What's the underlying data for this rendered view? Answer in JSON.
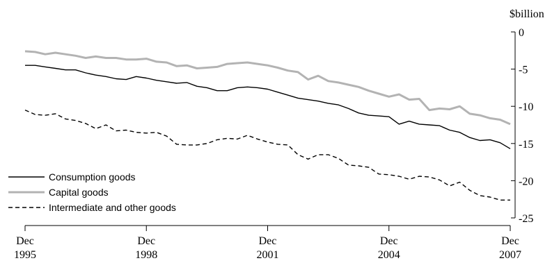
{
  "chart_data": {
    "type": "line",
    "unit_label": "$billion",
    "y_axis": {
      "position": "right",
      "ylim": [
        -25,
        0
      ],
      "ticks": [
        0,
        -5,
        -10,
        -15,
        -20,
        -25
      ],
      "tick_labels": [
        "0",
        "-5",
        "-10",
        "-15",
        "-20",
        "-25"
      ]
    },
    "x_axis": {
      "xlim": [
        1995.917,
        2007.917
      ],
      "ticks": [
        {
          "value": 1995.917,
          "line1": "Dec",
          "line2": "1995"
        },
        {
          "value": 1998.917,
          "line1": "Dec",
          "line2": "1998"
        },
        {
          "value": 2001.917,
          "line1": "Dec",
          "line2": "2001"
        },
        {
          "value": 2004.917,
          "line1": "Dec",
          "line2": "2004"
        },
        {
          "value": 2007.917,
          "line1": "Dec",
          "line2": "2007"
        }
      ]
    },
    "grid": false,
    "legend_position": "bottom-left",
    "series": [
      {
        "name": "Consumption goods",
        "color": "#000000",
        "dash": "solid",
        "x": [
          1995.917,
          1996.167,
          1996.417,
          1996.667,
          1996.917,
          1997.167,
          1997.417,
          1997.667,
          1997.917,
          1998.167,
          1998.417,
          1998.667,
          1998.917,
          1999.167,
          1999.417,
          1999.667,
          1999.917,
          2000.167,
          2000.417,
          2000.667,
          2000.917,
          2001.167,
          2001.417,
          2001.667,
          2001.917,
          2002.167,
          2002.417,
          2002.667,
          2002.917,
          2003.167,
          2003.417,
          2003.667,
          2003.917,
          2004.167,
          2004.417,
          2004.667,
          2004.917,
          2005.167,
          2005.417,
          2005.667,
          2005.917,
          2006.167,
          2006.417,
          2006.667,
          2006.917,
          2007.167,
          2007.417,
          2007.667,
          2007.917
        ],
        "y": [
          -4.5,
          -4.5,
          -4.7,
          -4.9,
          -5.1,
          -5.1,
          -5.5,
          -5.8,
          -6.0,
          -6.3,
          -6.4,
          -6.0,
          -6.2,
          -6.5,
          -6.7,
          -6.9,
          -6.8,
          -7.3,
          -7.5,
          -7.9,
          -7.9,
          -7.5,
          -7.4,
          -7.5,
          -7.7,
          -8.1,
          -8.5,
          -8.9,
          -9.1,
          -9.3,
          -9.6,
          -9.8,
          -10.3,
          -10.9,
          -11.2,
          -11.3,
          -11.4,
          -12.4,
          -12.0,
          -12.4,
          -12.5,
          -12.6,
          -13.2,
          -13.5,
          -14.2,
          -14.6,
          -14.5,
          -14.9,
          -15.7
        ]
      },
      {
        "name": "Capital goods",
        "color": "#b3b3b3",
        "dash": "solid",
        "x": [
          1995.917,
          1996.167,
          1996.417,
          1996.667,
          1996.917,
          1997.167,
          1997.417,
          1997.667,
          1997.917,
          1998.167,
          1998.417,
          1998.667,
          1998.917,
          1999.167,
          1999.417,
          1999.667,
          1999.917,
          2000.167,
          2000.417,
          2000.667,
          2000.917,
          2001.167,
          2001.417,
          2001.667,
          2001.917,
          2002.167,
          2002.417,
          2002.667,
          2002.917,
          2003.167,
          2003.417,
          2003.667,
          2003.917,
          2004.167,
          2004.417,
          2004.667,
          2004.917,
          2005.167,
          2005.417,
          2005.667,
          2005.917,
          2006.167,
          2006.417,
          2006.667,
          2006.917,
          2007.167,
          2007.417,
          2007.667,
          2007.917
        ],
        "y": [
          -2.6,
          -2.7,
          -3.0,
          -2.8,
          -3.0,
          -3.2,
          -3.5,
          -3.3,
          -3.5,
          -3.5,
          -3.7,
          -3.7,
          -3.6,
          -4.0,
          -4.1,
          -4.6,
          -4.5,
          -4.9,
          -4.8,
          -4.7,
          -4.3,
          -4.2,
          -4.1,
          -4.3,
          -4.5,
          -4.8,
          -5.2,
          -5.4,
          -6.4,
          -5.9,
          -6.6,
          -6.8,
          -7.1,
          -7.4,
          -7.9,
          -8.3,
          -8.7,
          -8.4,
          -9.1,
          -9.0,
          -10.5,
          -10.3,
          -10.4,
          -10.0,
          -11.0,
          -11.2,
          -11.6,
          -11.8,
          -12.4
        ]
      },
      {
        "name": "Intermediate and other goods",
        "color": "#000000",
        "dash": "dashed",
        "x": [
          1995.917,
          1996.167,
          1996.417,
          1996.667,
          1996.917,
          1997.167,
          1997.417,
          1997.667,
          1997.917,
          1998.167,
          1998.417,
          1998.667,
          1998.917,
          1999.167,
          1999.417,
          1999.667,
          1999.917,
          2000.167,
          2000.417,
          2000.667,
          2000.917,
          2001.167,
          2001.417,
          2001.667,
          2001.917,
          2002.167,
          2002.417,
          2002.667,
          2002.917,
          2003.167,
          2003.417,
          2003.667,
          2003.917,
          2004.167,
          2004.417,
          2004.667,
          2004.917,
          2005.167,
          2005.417,
          2005.667,
          2005.917,
          2006.167,
          2006.417,
          2006.667,
          2006.917,
          2007.167,
          2007.417,
          2007.667,
          2007.917
        ],
        "y": [
          -10.5,
          -11.1,
          -11.2,
          -11.0,
          -11.7,
          -11.9,
          -12.3,
          -13.0,
          -12.5,
          -13.3,
          -13.2,
          -13.5,
          -13.6,
          -13.5,
          -14.0,
          -15.1,
          -15.2,
          -15.2,
          -15.0,
          -14.5,
          -14.3,
          -14.4,
          -13.9,
          -14.4,
          -14.8,
          -15.1,
          -15.2,
          -16.5,
          -17.1,
          -16.5,
          -16.5,
          -17.0,
          -17.9,
          -18.0,
          -18.2,
          -19.1,
          -19.2,
          -19.4,
          -19.8,
          -19.4,
          -19.5,
          -19.9,
          -20.7,
          -20.2,
          -21.3,
          -22.0,
          -22.2,
          -22.6,
          -22.6
        ]
      }
    ]
  }
}
